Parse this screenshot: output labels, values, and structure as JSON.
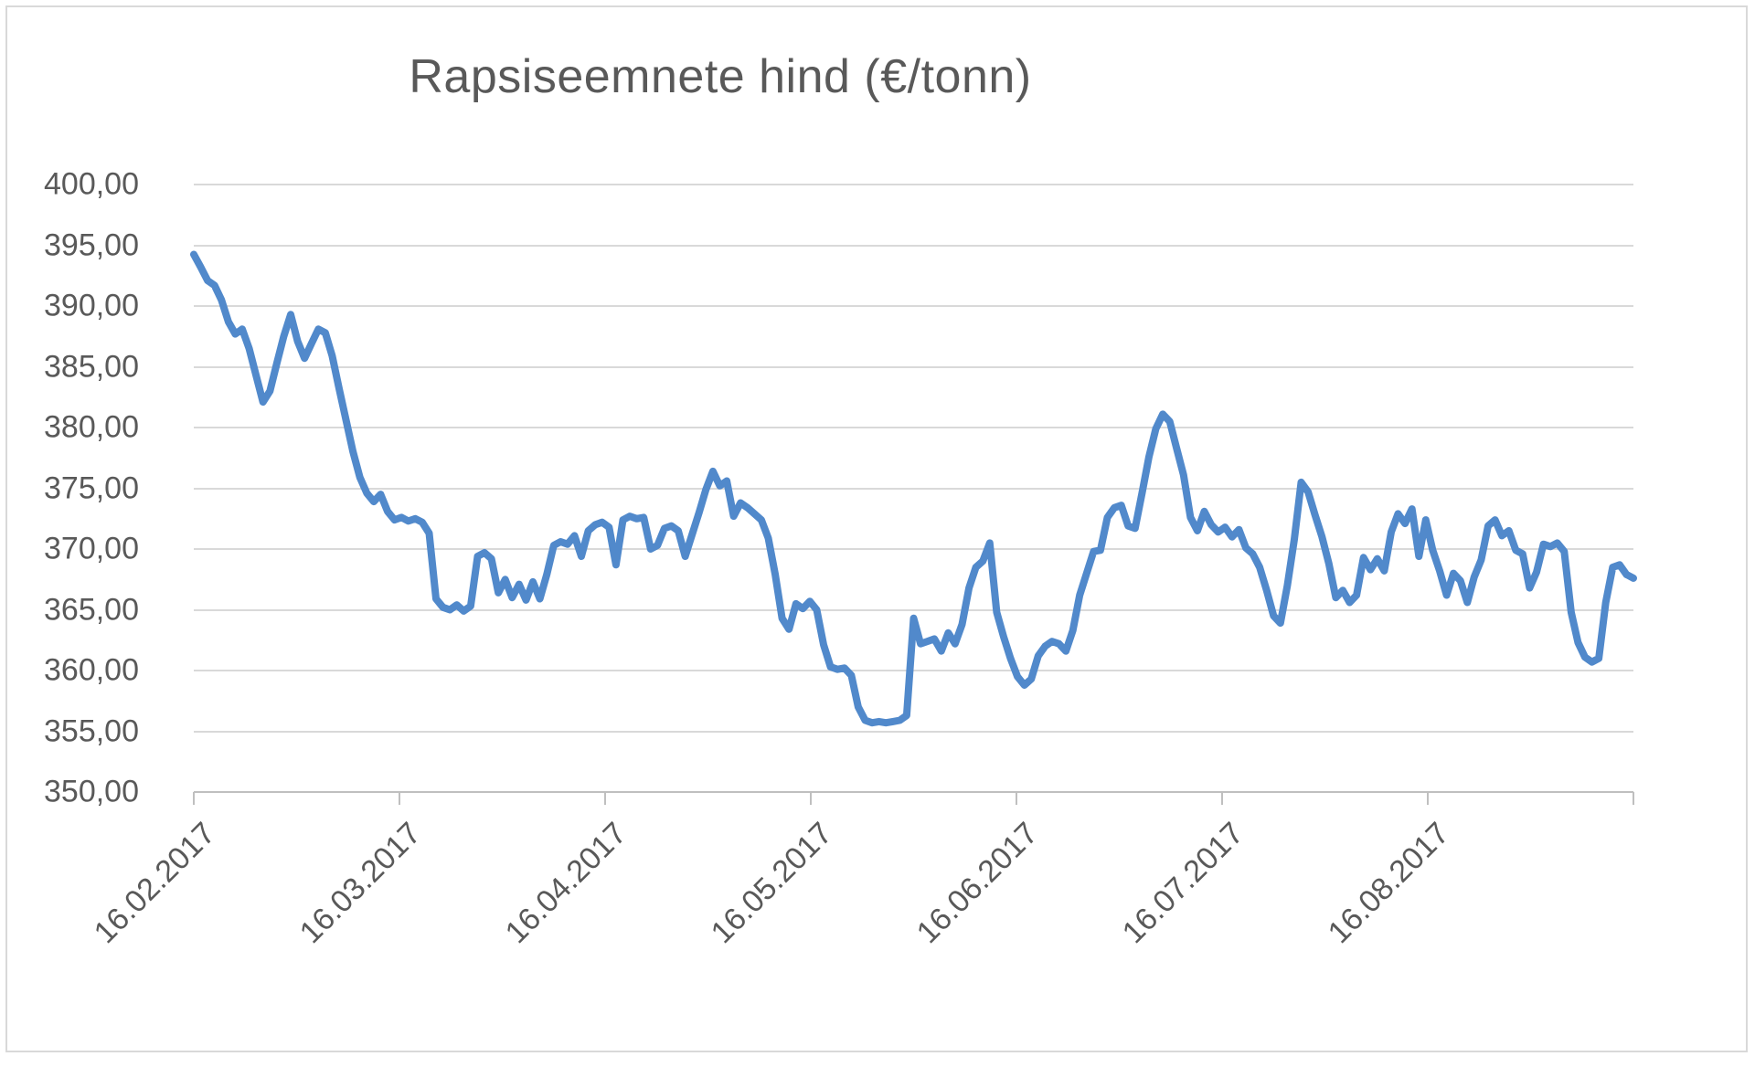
{
  "chart_data": {
    "type": "line",
    "title": "Rapsiseemnete hind (€/tonn)",
    "xlabel": "",
    "ylabel": "",
    "ylim": [
      350,
      400
    ],
    "y_step": 5,
    "y_tick_labels": [
      "400,00",
      "395,00",
      "390,00",
      "385,00",
      "380,00",
      "375,00",
      "370,00",
      "365,00",
      "360,00",
      "355,00",
      "350,00"
    ],
    "x_tick_labels": [
      "16.02.2017",
      "16.03.2017",
      "16.04.2017",
      "16.05.2017",
      "16.06.2017",
      "16.07.2017",
      "16.08.2017"
    ],
    "x_axis_months_span": 7,
    "grid": true,
    "legend": "none",
    "line_color": "#5189cb",
    "gridline_color": "#d9d9d9",
    "axis_color": "#bfbfbf",
    "text_color": "#595959",
    "series": [
      {
        "name": "Rapsiseemnete hind (€/tonn)",
        "values": [
          394.25,
          393.2,
          392.1,
          391.7,
          390.5,
          388.7,
          387.7,
          388.1,
          386.5,
          384.3,
          382.1,
          383.0,
          385.3,
          387.5,
          389.3,
          387.1,
          385.7,
          386.9,
          388.1,
          387.8,
          385.9,
          383.2,
          380.6,
          378.0,
          375.9,
          374.6,
          373.9,
          374.5,
          373.1,
          372.4,
          372.6,
          372.3,
          372.5,
          372.2,
          371.3,
          365.9,
          365.2,
          365.0,
          365.4,
          364.9,
          365.3,
          369.4,
          369.7,
          369.2,
          366.4,
          367.5,
          366.0,
          367.1,
          365.8,
          367.3,
          365.9,
          367.9,
          370.3,
          370.6,
          370.4,
          371.1,
          369.4,
          371.5,
          372.0,
          372.2,
          371.8,
          368.7,
          372.4,
          372.7,
          372.5,
          372.6,
          370.0,
          370.3,
          371.7,
          371.9,
          371.5,
          369.4,
          371.2,
          373.0,
          374.9,
          376.4,
          375.2,
          375.6,
          372.7,
          373.8,
          373.4,
          372.9,
          372.4,
          370.9,
          367.9,
          364.3,
          363.4,
          365.5,
          365.1,
          365.7,
          365.0,
          362.1,
          360.3,
          360.1,
          360.2,
          359.6,
          357.0,
          355.9,
          355.7,
          355.8,
          355.7,
          355.8,
          355.9,
          356.3,
          364.3,
          362.2,
          362.4,
          362.6,
          361.6,
          363.1,
          362.2,
          363.8,
          366.8,
          368.5,
          369.0,
          370.5,
          364.8,
          362.8,
          361.0,
          359.5,
          358.8,
          359.3,
          361.2,
          362.0,
          362.4,
          362.2,
          361.6,
          363.3,
          366.2,
          368.0,
          369.8,
          369.9,
          372.6,
          373.4,
          373.6,
          371.9,
          371.7,
          374.6,
          377.6,
          379.9,
          381.1,
          380.5,
          378.3,
          376.1,
          372.6,
          371.5,
          373.1,
          372.0,
          371.4,
          371.8,
          371.0,
          371.6,
          370.1,
          369.6,
          368.5,
          366.6,
          364.5,
          363.9,
          367.0,
          370.8,
          375.5,
          374.7,
          372.8,
          371.0,
          368.8,
          366.0,
          366.6,
          365.6,
          366.2,
          369.3,
          368.3,
          369.2,
          368.2,
          371.4,
          372.9,
          372.1,
          373.3,
          369.4,
          372.4,
          369.9,
          368.2,
          366.2,
          368.0,
          367.4,
          365.6,
          367.7,
          369.1,
          371.9,
          372.4,
          371.1,
          371.5,
          369.9,
          369.6,
          366.8,
          368.1,
          370.4,
          370.2,
          370.5,
          369.8,
          364.8,
          362.3,
          361.1,
          360.7,
          361.0,
          365.6,
          368.5,
          368.7,
          367.9,
          367.6
        ]
      }
    ]
  }
}
